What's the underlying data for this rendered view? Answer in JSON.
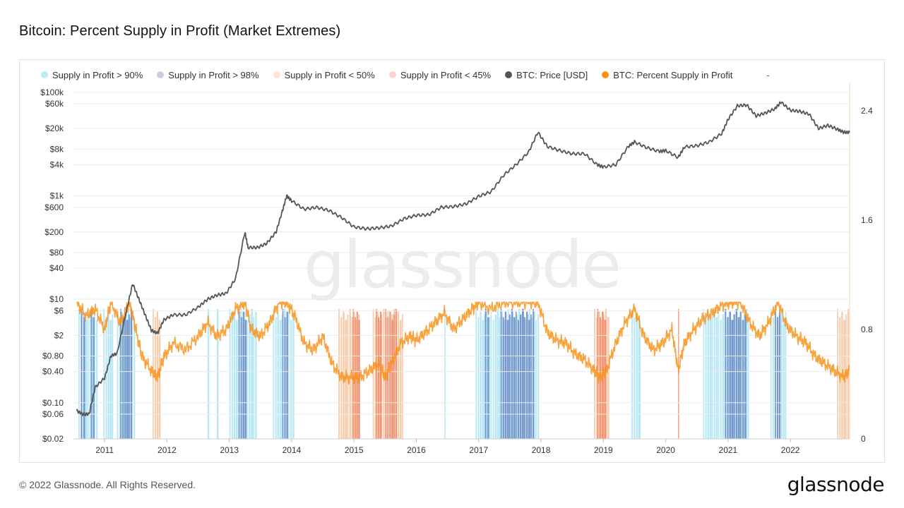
{
  "title": "Bitcoin: Percent Supply in Profit (Market Extremes)",
  "footer": "© 2022 Glassnode. All Rights Reserved.",
  "logo": "glassnode",
  "watermark": "glassnode",
  "legend": {
    "items": [
      {
        "label": "Supply in Profit > 90%",
        "color": "#bfe9f5"
      },
      {
        "label": "Supply in Profit > 98%",
        "color": "#c9cde6"
      },
      {
        "label": "Supply in Profit < 50%",
        "color": "#fde4d2"
      },
      {
        "label": "Supply in Profit < 45%",
        "color": "#fcd3d3"
      },
      {
        "label": "BTC: Price [USD]",
        "color": "#555555"
      },
      {
        "label": "BTC: Percent Supply in Profit",
        "color": "#f7931a"
      }
    ],
    "more": "-"
  },
  "chart_data": {
    "type": "line",
    "x_ticks": [
      "2011",
      "2012",
      "2013",
      "2014",
      "2015",
      "2016",
      "2017",
      "2018",
      "2019",
      "2020",
      "2021",
      "2022"
    ],
    "y_left_ticks": [
      "$100k",
      "$60k",
      "$20k",
      "$8k",
      "$4k",
      "$1k",
      "$600",
      "$200",
      "$80",
      "$40",
      "$10",
      "$6",
      "$2",
      "$0.80",
      "$0.40",
      "$0.10",
      "$0.06",
      "$0.02"
    ],
    "y_left_values": [
      100000,
      60000,
      20000,
      8000,
      4000,
      1000,
      600,
      200,
      80,
      40,
      10,
      6,
      2,
      0.8,
      0.4,
      0.1,
      0.06,
      0.02
    ],
    "y_left_ylim": [
      0.02,
      150000
    ],
    "y_right_ticks": [
      "2.4",
      "1.6",
      "0.8",
      "0"
    ],
    "y_right_values": [
      2.4,
      1.6,
      0.8,
      0
    ],
    "y_right_ylim": [
      0,
      2.6
    ],
    "x_range": [
      2010.5,
      2022.95
    ],
    "price_series": {
      "name": "BTC: Price [USD]",
      "color": "#555555",
      "points": [
        [
          2010.55,
          0.07
        ],
        [
          2010.65,
          0.06
        ],
        [
          2010.75,
          0.06
        ],
        [
          2010.85,
          0.2
        ],
        [
          2011.0,
          0.3
        ],
        [
          2011.1,
          0.8
        ],
        [
          2011.2,
          0.9
        ],
        [
          2011.35,
          6
        ],
        [
          2011.45,
          20
        ],
        [
          2011.55,
          10
        ],
        [
          2011.65,
          5
        ],
        [
          2011.75,
          2.5
        ],
        [
          2011.85,
          2.2
        ],
        [
          2011.95,
          4
        ],
        [
          2012.1,
          5
        ],
        [
          2012.3,
          5
        ],
        [
          2012.5,
          7
        ],
        [
          2012.65,
          10
        ],
        [
          2012.8,
          12
        ],
        [
          2012.95,
          13
        ],
        [
          2013.1,
          25
        ],
        [
          2013.25,
          200
        ],
        [
          2013.3,
          100
        ],
        [
          2013.45,
          100
        ],
        [
          2013.6,
          120
        ],
        [
          2013.75,
          200
        ],
        [
          2013.85,
          500
        ],
        [
          2013.92,
          1000
        ],
        [
          2014.0,
          800
        ],
        [
          2014.2,
          550
        ],
        [
          2014.4,
          600
        ],
        [
          2014.6,
          520
        ],
        [
          2014.8,
          380
        ],
        [
          2015.0,
          250
        ],
        [
          2015.2,
          230
        ],
        [
          2015.4,
          240
        ],
        [
          2015.6,
          260
        ],
        [
          2015.8,
          360
        ],
        [
          2016.0,
          420
        ],
        [
          2016.2,
          430
        ],
        [
          2016.4,
          600
        ],
        [
          2016.6,
          620
        ],
        [
          2016.8,
          700
        ],
        [
          2017.0,
          980
        ],
        [
          2017.2,
          1200
        ],
        [
          2017.4,
          2500
        ],
        [
          2017.6,
          4000
        ],
        [
          2017.8,
          7000
        ],
        [
          2017.95,
          17000
        ],
        [
          2018.1,
          9000
        ],
        [
          2018.3,
          7500
        ],
        [
          2018.5,
          6500
        ],
        [
          2018.7,
          6500
        ],
        [
          2018.9,
          4000
        ],
        [
          2019.0,
          3600
        ],
        [
          2019.2,
          4000
        ],
        [
          2019.4,
          9000
        ],
        [
          2019.5,
          11000
        ],
        [
          2019.7,
          8500
        ],
        [
          2019.9,
          7200
        ],
        [
          2020.0,
          7500
        ],
        [
          2020.2,
          5500
        ],
        [
          2020.3,
          8800
        ],
        [
          2020.5,
          9300
        ],
        [
          2020.7,
          11000
        ],
        [
          2020.9,
          16000
        ],
        [
          2021.0,
          30000
        ],
        [
          2021.15,
          55000
        ],
        [
          2021.3,
          57000
        ],
        [
          2021.45,
          35000
        ],
        [
          2021.6,
          40000
        ],
        [
          2021.75,
          48000
        ],
        [
          2021.85,
          65000
        ],
        [
          2022.0,
          45000
        ],
        [
          2022.15,
          43000
        ],
        [
          2022.3,
          38000
        ],
        [
          2022.45,
          20000
        ],
        [
          2022.6,
          23000
        ],
        [
          2022.75,
          19500
        ],
        [
          2022.85,
          17000
        ],
        [
          2022.95,
          16800
        ]
      ]
    },
    "supply_profit_series": {
      "name": "BTC: Percent Supply in Profit",
      "color": "#f7931a",
      "points": [
        [
          2010.55,
          1.0
        ],
        [
          2010.7,
          0.9
        ],
        [
          2010.85,
          0.95
        ],
        [
          2011.0,
          0.8
        ],
        [
          2011.1,
          1.0
        ],
        [
          2011.25,
          0.85
        ],
        [
          2011.4,
          1.0
        ],
        [
          2011.5,
          0.8
        ],
        [
          2011.6,
          0.6
        ],
        [
          2011.75,
          0.5
        ],
        [
          2011.85,
          0.45
        ],
        [
          2011.95,
          0.6
        ],
        [
          2012.1,
          0.7
        ],
        [
          2012.3,
          0.65
        ],
        [
          2012.5,
          0.75
        ],
        [
          2012.65,
          0.85
        ],
        [
          2012.8,
          0.75
        ],
        [
          2012.95,
          0.8
        ],
        [
          2013.1,
          0.95
        ],
        [
          2013.25,
          1.0
        ],
        [
          2013.35,
          0.8
        ],
        [
          2013.5,
          0.75
        ],
        [
          2013.65,
          0.85
        ],
        [
          2013.8,
          1.0
        ],
        [
          2013.92,
          1.0
        ],
        [
          2014.05,
          0.9
        ],
        [
          2014.2,
          0.7
        ],
        [
          2014.35,
          0.65
        ],
        [
          2014.5,
          0.75
        ],
        [
          2014.65,
          0.55
        ],
        [
          2014.8,
          0.45
        ],
        [
          2014.95,
          0.45
        ],
        [
          2015.1,
          0.45
        ],
        [
          2015.25,
          0.5
        ],
        [
          2015.4,
          0.55
        ],
        [
          2015.5,
          0.45
        ],
        [
          2015.6,
          0.55
        ],
        [
          2015.75,
          0.7
        ],
        [
          2015.9,
          0.75
        ],
        [
          2016.0,
          0.72
        ],
        [
          2016.15,
          0.78
        ],
        [
          2016.3,
          0.85
        ],
        [
          2016.45,
          0.92
        ],
        [
          2016.6,
          0.8
        ],
        [
          2016.75,
          0.88
        ],
        [
          2016.9,
          0.95
        ],
        [
          2017.0,
          1.0
        ],
        [
          2017.2,
          0.95
        ],
        [
          2017.4,
          1.0
        ],
        [
          2017.6,
          1.0
        ],
        [
          2017.8,
          1.0
        ],
        [
          2017.95,
          1.0
        ],
        [
          2018.1,
          0.78
        ],
        [
          2018.25,
          0.72
        ],
        [
          2018.4,
          0.7
        ],
        [
          2018.55,
          0.62
        ],
        [
          2018.7,
          0.58
        ],
        [
          2018.85,
          0.5
        ],
        [
          2018.95,
          0.45
        ],
        [
          2019.05,
          0.5
        ],
        [
          2019.2,
          0.7
        ],
        [
          2019.35,
          0.85
        ],
        [
          2019.5,
          0.95
        ],
        [
          2019.65,
          0.75
        ],
        [
          2019.8,
          0.65
        ],
        [
          2019.95,
          0.7
        ],
        [
          2020.1,
          0.8
        ],
        [
          2020.2,
          0.5
        ],
        [
          2020.3,
          0.7
        ],
        [
          2020.45,
          0.8
        ],
        [
          2020.6,
          0.88
        ],
        [
          2020.75,
          0.92
        ],
        [
          2020.9,
          0.98
        ],
        [
          2021.05,
          1.0
        ],
        [
          2021.2,
          1.0
        ],
        [
          2021.35,
          0.85
        ],
        [
          2021.5,
          0.75
        ],
        [
          2021.65,
          0.85
        ],
        [
          2021.8,
          1.0
        ],
        [
          2021.95,
          0.82
        ],
        [
          2022.1,
          0.75
        ],
        [
          2022.25,
          0.7
        ],
        [
          2022.4,
          0.6
        ],
        [
          2022.55,
          0.55
        ],
        [
          2022.7,
          0.5
        ],
        [
          2022.85,
          0.45
        ],
        [
          2022.95,
          0.5
        ]
      ]
    },
    "bands": {
      "profit_gt_90": {
        "color": "#a8e3f2",
        "ranges": [
          [
            2010.58,
            2010.9
          ],
          [
            2010.98,
            2011.15
          ],
          [
            2011.2,
            2011.5
          ],
          [
            2012.65,
            2012.7
          ],
          [
            2012.8,
            2012.85
          ],
          [
            2013.0,
            2013.45
          ],
          [
            2013.7,
            2014.05
          ],
          [
            2016.45,
            2016.48
          ],
          [
            2016.95,
            2017.98
          ],
          [
            2019.45,
            2019.6
          ],
          [
            2020.6,
            2021.35
          ],
          [
            2021.68,
            2021.95
          ]
        ]
      },
      "profit_gt_98": {
        "color": "#6f8bc4",
        "ranges": [
          [
            2010.62,
            2010.7
          ],
          [
            2010.78,
            2010.85
          ],
          [
            2011.25,
            2011.45
          ],
          [
            2013.15,
            2013.28
          ],
          [
            2013.85,
            2013.95
          ],
          [
            2017.1,
            2017.18
          ],
          [
            2017.35,
            2017.9
          ],
          [
            2020.95,
            2021.3
          ],
          [
            2021.75,
            2021.85
          ]
        ]
      },
      "profit_lt_50": {
        "color": "#f6c49e",
        "ranges": [
          [
            2011.77,
            2011.9
          ],
          [
            2014.75,
            2015.1
          ],
          [
            2015.3,
            2015.8
          ],
          [
            2018.85,
            2019.1
          ],
          [
            2020.2,
            2020.23
          ],
          [
            2022.75,
            2022.95
          ]
        ]
      },
      "profit_lt_45": {
        "color": "#f2886b",
        "ranges": [
          [
            2014.98,
            2015.1
          ],
          [
            2015.35,
            2015.45
          ],
          [
            2015.5,
            2015.7
          ],
          [
            2018.9,
            2019.05
          ],
          [
            2020.2,
            2020.22
          ]
        ]
      }
    }
  }
}
